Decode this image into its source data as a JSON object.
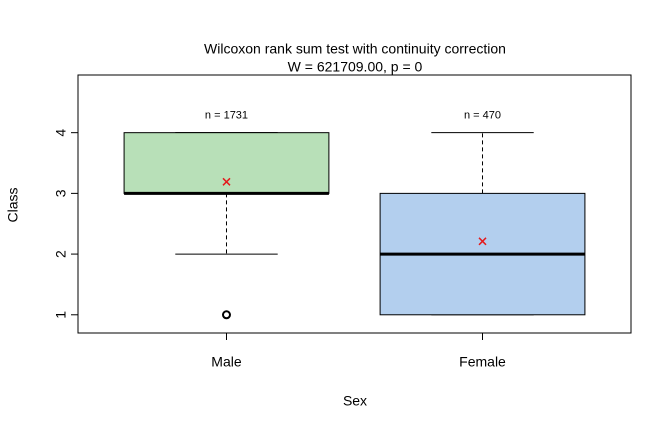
{
  "chart_data": {
    "type": "box",
    "title": "Wilcoxon rank sum test with continuity correction",
    "subtitle": "W = 621709.00, p = 0",
    "x_label": "Sex",
    "y_label": "Class",
    "categories": [
      "Male",
      "Female"
    ],
    "whisker_low": [
      2,
      1
    ],
    "q1": [
      3,
      1
    ],
    "median": [
      3,
      2
    ],
    "q3": [
      4,
      3
    ],
    "whisker_high": [
      4,
      4
    ],
    "mean": [
      3.19,
      2.21
    ],
    "mean_color": "#e41a1c",
    "outliers": [
      [
        1
      ],
      []
    ],
    "n_labels": [
      "n = 1731",
      "n = 470"
    ],
    "colors": [
      "#b8e0b8",
      "#b3cfee"
    ],
    "ylim": [
      0.7,
      4.95
    ],
    "yticks": [
      1,
      2,
      3,
      4
    ]
  }
}
